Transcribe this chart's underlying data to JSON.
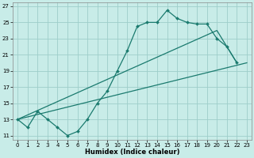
{
  "xlabel": "Humidex (Indice chaleur)",
  "bg_color": "#c8ece8",
  "grid_color": "#9ececa",
  "line_color": "#1a7a6e",
  "xlim": [
    -0.5,
    23.5
  ],
  "ylim": [
    10.5,
    27.5
  ],
  "xticks": [
    0,
    1,
    2,
    3,
    4,
    5,
    6,
    7,
    8,
    9,
    10,
    11,
    12,
    13,
    14,
    15,
    16,
    17,
    18,
    19,
    20,
    21,
    22,
    23
  ],
  "yticks": [
    11,
    13,
    15,
    17,
    19,
    21,
    23,
    25,
    27
  ],
  "line1_x": [
    0,
    1,
    2,
    3,
    4,
    5,
    6,
    7,
    8,
    9,
    10,
    11,
    12,
    13,
    14,
    15,
    16,
    17,
    18,
    19,
    20,
    21,
    22
  ],
  "line1_y": [
    13,
    12,
    14,
    13,
    12,
    11,
    11.5,
    13,
    15,
    16.5,
    19,
    21.5,
    24.5,
    25,
    25,
    26.5,
    25.5,
    25,
    24.8,
    24.8,
    23,
    22,
    20
  ],
  "line2_x": [
    0,
    23
  ],
  "line2_y": [
    13,
    20
  ],
  "line3_x": [
    0,
    20,
    22
  ],
  "line3_y": [
    13,
    24,
    20
  ]
}
